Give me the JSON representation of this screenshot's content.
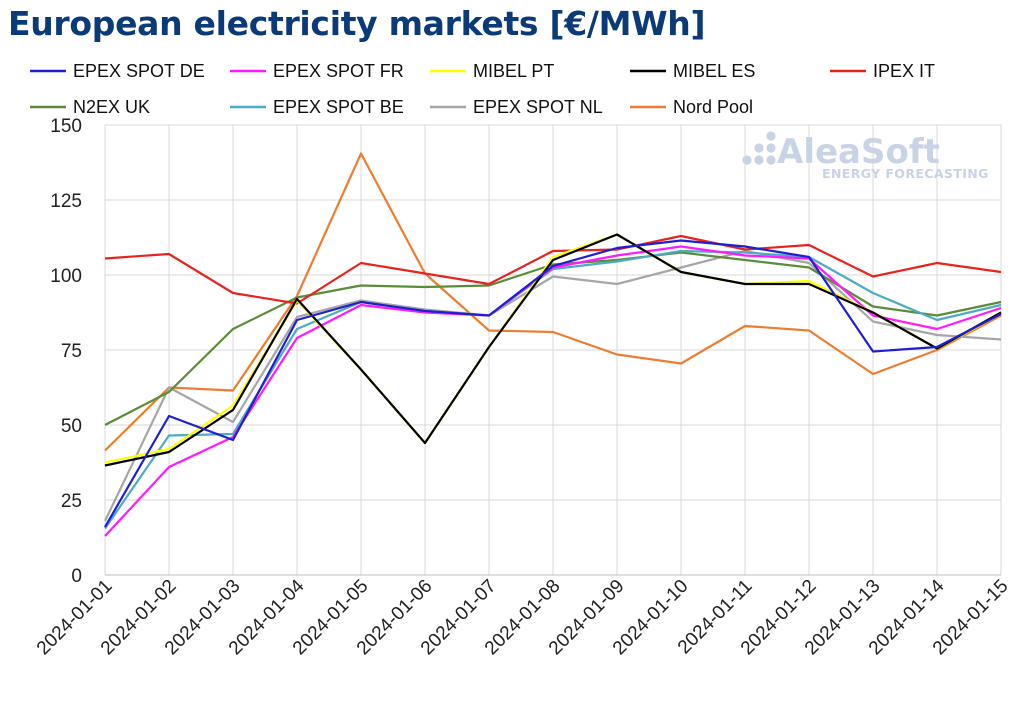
{
  "chart_data": {
    "type": "line",
    "title": "European electricity markets [€/MWh]",
    "xlabel": "",
    "ylabel": "",
    "ylim": [
      0,
      150
    ],
    "yticks": [
      0,
      25,
      50,
      75,
      100,
      125,
      150
    ],
    "grid": true,
    "legend_position": "top",
    "x": [
      "2024-01-01",
      "2024-01-02",
      "2024-01-03",
      "2024-01-04",
      "2024-01-05",
      "2024-01-06",
      "2024-01-07",
      "2024-01-08",
      "2024-01-09",
      "2024-01-10",
      "2024-01-11",
      "2024-01-12",
      "2024-01-13",
      "2024-01-14",
      "2024-01-15"
    ],
    "series": [
      {
        "name": "EPEX SPOT DE",
        "color": "#1f1fcf",
        "values": [
          16,
          53,
          45,
          85,
          91,
          null,
          null,
          null,
          null,
          null,
          null,
          null,
          null,
          null,
          null
        ]
      },
      {
        "name": "EPEX SPOT FR",
        "color": "#ff1aff",
        "values": [
          13,
          36,
          46,
          79,
          90,
          87.5,
          86.5,
          102.5,
          106.5,
          109.5,
          106.5,
          105.5,
          86.5,
          82,
          89
        ]
      },
      {
        "name": "MIBEL PT",
        "color": "#ffff00",
        "values": [
          37.5,
          42,
          56.5,
          91.5,
          68.5,
          44,
          76,
          106,
          113.5,
          101,
          97,
          98,
          87.5,
          75.5,
          87
        ]
      },
      {
        "name": "MIBEL ES",
        "color": "#000000",
        "values": [
          36.5,
          41,
          55,
          92,
          68.5,
          44,
          76,
          105,
          113.5,
          101,
          97,
          97,
          87.5,
          75.5,
          87.5
        ]
      },
      {
        "name": "IPEX IT",
        "color": "#e8231d",
        "values": [
          105.5,
          107,
          94,
          90.5,
          104,
          100.5,
          97,
          108,
          108.5,
          113,
          108.5,
          110,
          99.5,
          104,
          101
        ]
      },
      {
        "name": "N2EX UK",
        "color": "#5b8c3a",
        "values": [
          50,
          61,
          82,
          92.5,
          96.5,
          96,
          96.5,
          103.5,
          105,
          107.5,
          105,
          102.5,
          89.5,
          86.5,
          91
        ]
      },
      {
        "name": "EPEX SPOT BE",
        "color": "#4bacc6",
        "values": [
          15.5,
          46.5,
          47,
          82,
          91,
          88,
          86.5,
          102,
          104.5,
          108,
          107.5,
          106,
          94,
          85,
          90
        ]
      },
      {
        "name": "EPEX SPOT NL",
        "color": "#a6a6a6",
        "values": [
          18,
          62.5,
          51,
          86,
          91.5,
          88.5,
          86.5,
          99.5,
          97,
          102.5,
          108,
          104,
          84.5,
          80,
          78.5
        ]
      },
      {
        "name": "Nord Pool",
        "color": "#ed7d31",
        "values": [
          41.5,
          62.5,
          61.5,
          93,
          140.5,
          100.5,
          81.5,
          81,
          73.5,
          70.5,
          83,
          81.5,
          67,
          75,
          86.5
        ]
      }
    ],
    "de_values_tail": [
      null,
      null,
      null,
      null,
      null,
      88,
      86.5,
      103,
      109,
      111.5,
      109.5,
      106,
      74.5,
      76,
      87
    ]
  },
  "watermark": {
    "brand": "AleaSoft",
    "tagline": "ENERGY FORECASTING"
  }
}
